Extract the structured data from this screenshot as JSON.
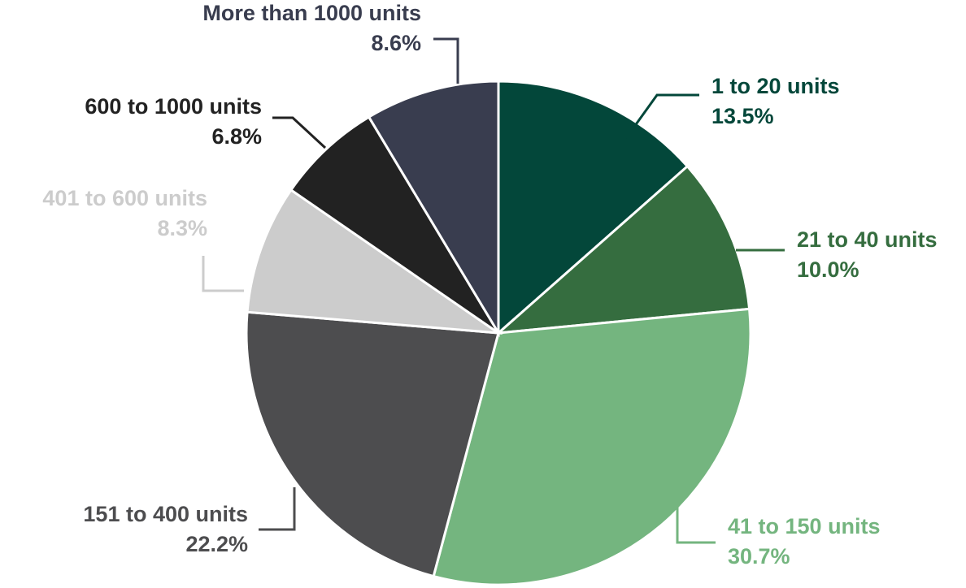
{
  "chart_data": {
    "type": "pie",
    "categories": [
      "1 to 20 units",
      "21 to 40 units",
      "41 to 150 units",
      "151 to 400 units",
      "401 to 600 units",
      "600 to 1000 units",
      "More than 1000 units"
    ],
    "values": [
      13.5,
      10.0,
      30.7,
      22.2,
      8.3,
      6.8,
      8.6
    ],
    "value_labels": [
      "13.5%",
      "10.0%",
      "30.7%",
      "22.2%",
      "8.3%",
      "6.8%",
      "8.6%"
    ],
    "colors": [
      "#03473a",
      "#356d3f",
      "#74b57f",
      "#4d4d4f",
      "#cccccc",
      "#222222",
      "#393d4f"
    ]
  }
}
